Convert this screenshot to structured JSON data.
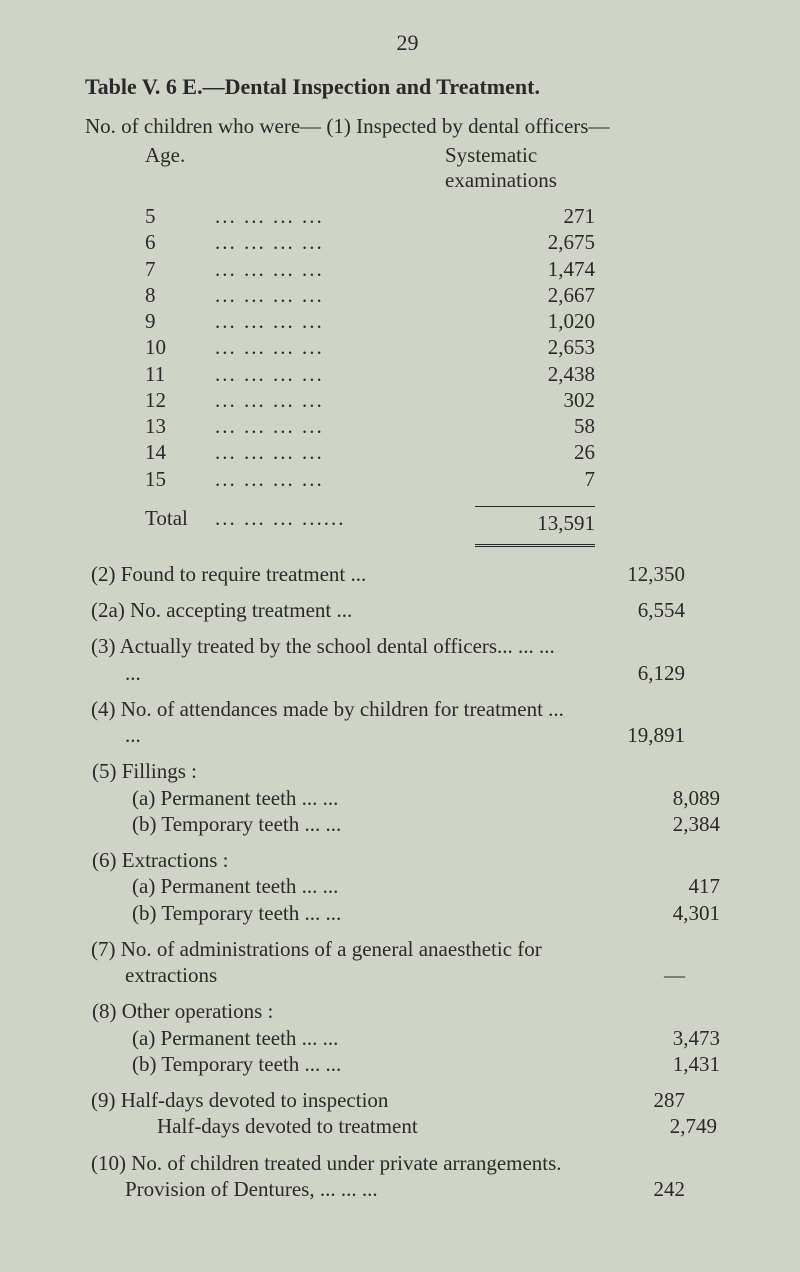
{
  "page_number": "29",
  "title": "Table V. 6 E.—Dental Inspection and Treatment.",
  "subtitle": "No. of children who were—  (1) Inspected by dental officers—",
  "column_headers": {
    "left": "Age.",
    "right_line1": "Systematic",
    "right_line2": "examinations"
  },
  "age_rows": [
    {
      "age": "5",
      "value": "271"
    },
    {
      "age": "6",
      "value": "2,675"
    },
    {
      "age": "7",
      "value": "1,474"
    },
    {
      "age": "8",
      "value": "2,667"
    },
    {
      "age": "9",
      "value": "1,020"
    },
    {
      "age": "10",
      "value": "2,653"
    },
    {
      "age": "11",
      "value": "2,438"
    },
    {
      "age": "12",
      "value": "302"
    },
    {
      "age": "13",
      "value": "58"
    },
    {
      "age": "14",
      "value": "26"
    },
    {
      "age": "15",
      "value": "7"
    }
  ],
  "dots_short": "...    ...    ...    ...",
  "total": {
    "label": "Total",
    "dots": "...    ...    ...    ......",
    "value": "13,591"
  },
  "items": [
    {
      "label": "(2) Found to require treatment    ...",
      "value": "12,350"
    },
    {
      "label": "(2a) No. accepting treatment        ...",
      "value": "6,554"
    },
    {
      "label": "(3) Actually treated by the school dental officers... ...    ...    ...",
      "value": "6,129"
    },
    {
      "label": "(4) No. of attendances made by children for treatment ...    ...",
      "value": "19,891"
    }
  ],
  "group5": {
    "head": "(5) Fillings :",
    "subs": [
      {
        "label": "(a) Permanent teeth    ...    ...",
        "value": "8,089"
      },
      {
        "label": "(b) Temporary teeth    ...    ...",
        "value": "2,384"
      }
    ]
  },
  "group6": {
    "head": "(6) Extractions :",
    "subs": [
      {
        "label": "(a) Permanent teeth    ...    ...",
        "value": "417"
      },
      {
        "label": "(b) Temporary teeth    ...    ...",
        "value": "4,301"
      }
    ]
  },
  "item7": {
    "label": "(7) No. of administrations of a general anaesthetic for extractions",
    "value": "—"
  },
  "group8": {
    "head": "(8) Other operations :",
    "subs": [
      {
        "label": "(a) Permanent teeth    ...    ...",
        "value": "3,473"
      },
      {
        "label": "(b) Temporary teeth    ...    ...",
        "value": "1,431"
      }
    ]
  },
  "item9a": {
    "label": "(9) Half-days devoted to inspection",
    "value": "287"
  },
  "item9b": {
    "label": "Half-days devoted to treatment",
    "value": "2,749"
  },
  "item10": {
    "label": "(10) No. of children treated under private arrangements. Provision of Dentures,    ...    ...    ...",
    "value": "242"
  }
}
